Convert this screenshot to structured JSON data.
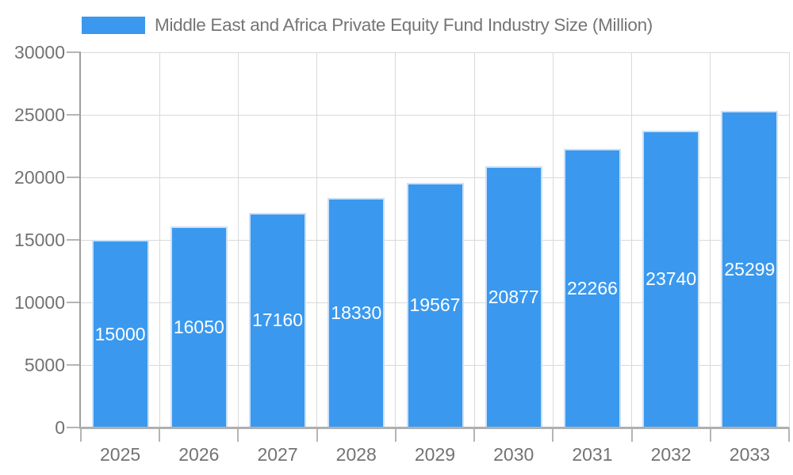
{
  "legend": {
    "label": "Middle East and Africa Private Equity Fund Industry Size (Million)"
  },
  "chart_data": {
    "type": "bar",
    "title": "Middle East and Africa Private Equity Fund Industry Size (Million)",
    "categories": [
      "2025",
      "2026",
      "2027",
      "2028",
      "2029",
      "2030",
      "2031",
      "2032",
      "2033"
    ],
    "values": [
      15000,
      16050,
      17160,
      18330,
      19567,
      20877,
      22266,
      23740,
      25299
    ],
    "xlabel": "",
    "ylabel": "",
    "ylim": [
      0,
      30000
    ],
    "ytick_step": 5000,
    "grid": true,
    "legend_position": "top-left",
    "bar_color": "#3A99EE",
    "bar_border_color": "#CBE0F8",
    "value_label_color": "#FFFFFF",
    "axis_text_color": "#737373",
    "grid_color": "#D9D9D9",
    "y_axis_line_color": "#9E9E9E",
    "x_axis_line_color": "#B0B0B0",
    "tick_color": "#B5B5B5"
  }
}
